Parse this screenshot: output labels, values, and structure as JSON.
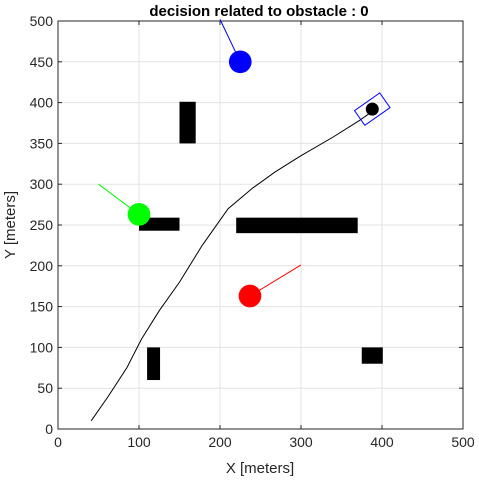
{
  "chart_data": {
    "type": "scatter",
    "title": "decision related to obstacle  : 0",
    "xlabel": "X [meters]",
    "ylabel": "Y [meters]",
    "xlim": [
      0,
      500
    ],
    "ylim": [
      0,
      500
    ],
    "xticks": [
      0,
      100,
      200,
      300,
      400,
      500
    ],
    "yticks": [
      0,
      50,
      100,
      150,
      200,
      250,
      300,
      350,
      400,
      450,
      500
    ],
    "grid": true,
    "path": {
      "color": "#000000",
      "x": [
        41,
        62,
        85,
        103,
        125,
        150,
        178,
        210,
        240,
        268,
        300,
        340,
        372,
        392
      ],
      "y": [
        10,
        40,
        75,
        110,
        145,
        180,
        225,
        270,
        295,
        315,
        335,
        358,
        378,
        392
      ]
    },
    "obstacles": [
      {
        "x0": 150,
        "x1": 170,
        "y0": 350,
        "y1": 401
      },
      {
        "x0": 100,
        "x1": 150,
        "y0": 243,
        "y1": 259
      },
      {
        "x0": 220,
        "x1": 370,
        "y0": 240,
        "y1": 259
      },
      {
        "x0": 110,
        "x1": 126,
        "y0": 60,
        "y1": 100
      },
      {
        "x0": 375,
        "x1": 401,
        "y0": 80,
        "y1": 100
      }
    ],
    "agents": [
      {
        "color": "#0000ff",
        "x": 225,
        "y": 450,
        "r": 14,
        "dx": 200,
        "dy": 502
      },
      {
        "color": "#00ff00",
        "x": 100,
        "y": 263,
        "r": 14,
        "dx": 50,
        "dy": 300
      },
      {
        "color": "#ff0000",
        "x": 237,
        "y": 163,
        "r": 14,
        "dx": 300,
        "dy": 201
      }
    ],
    "vehicle": {
      "x": 388,
      "y": 392,
      "dot_r": 8,
      "dot_color": "#000000",
      "box_color": "#0000ff",
      "box_length": 38,
      "box_width": 22,
      "heading_deg": 35
    }
  }
}
